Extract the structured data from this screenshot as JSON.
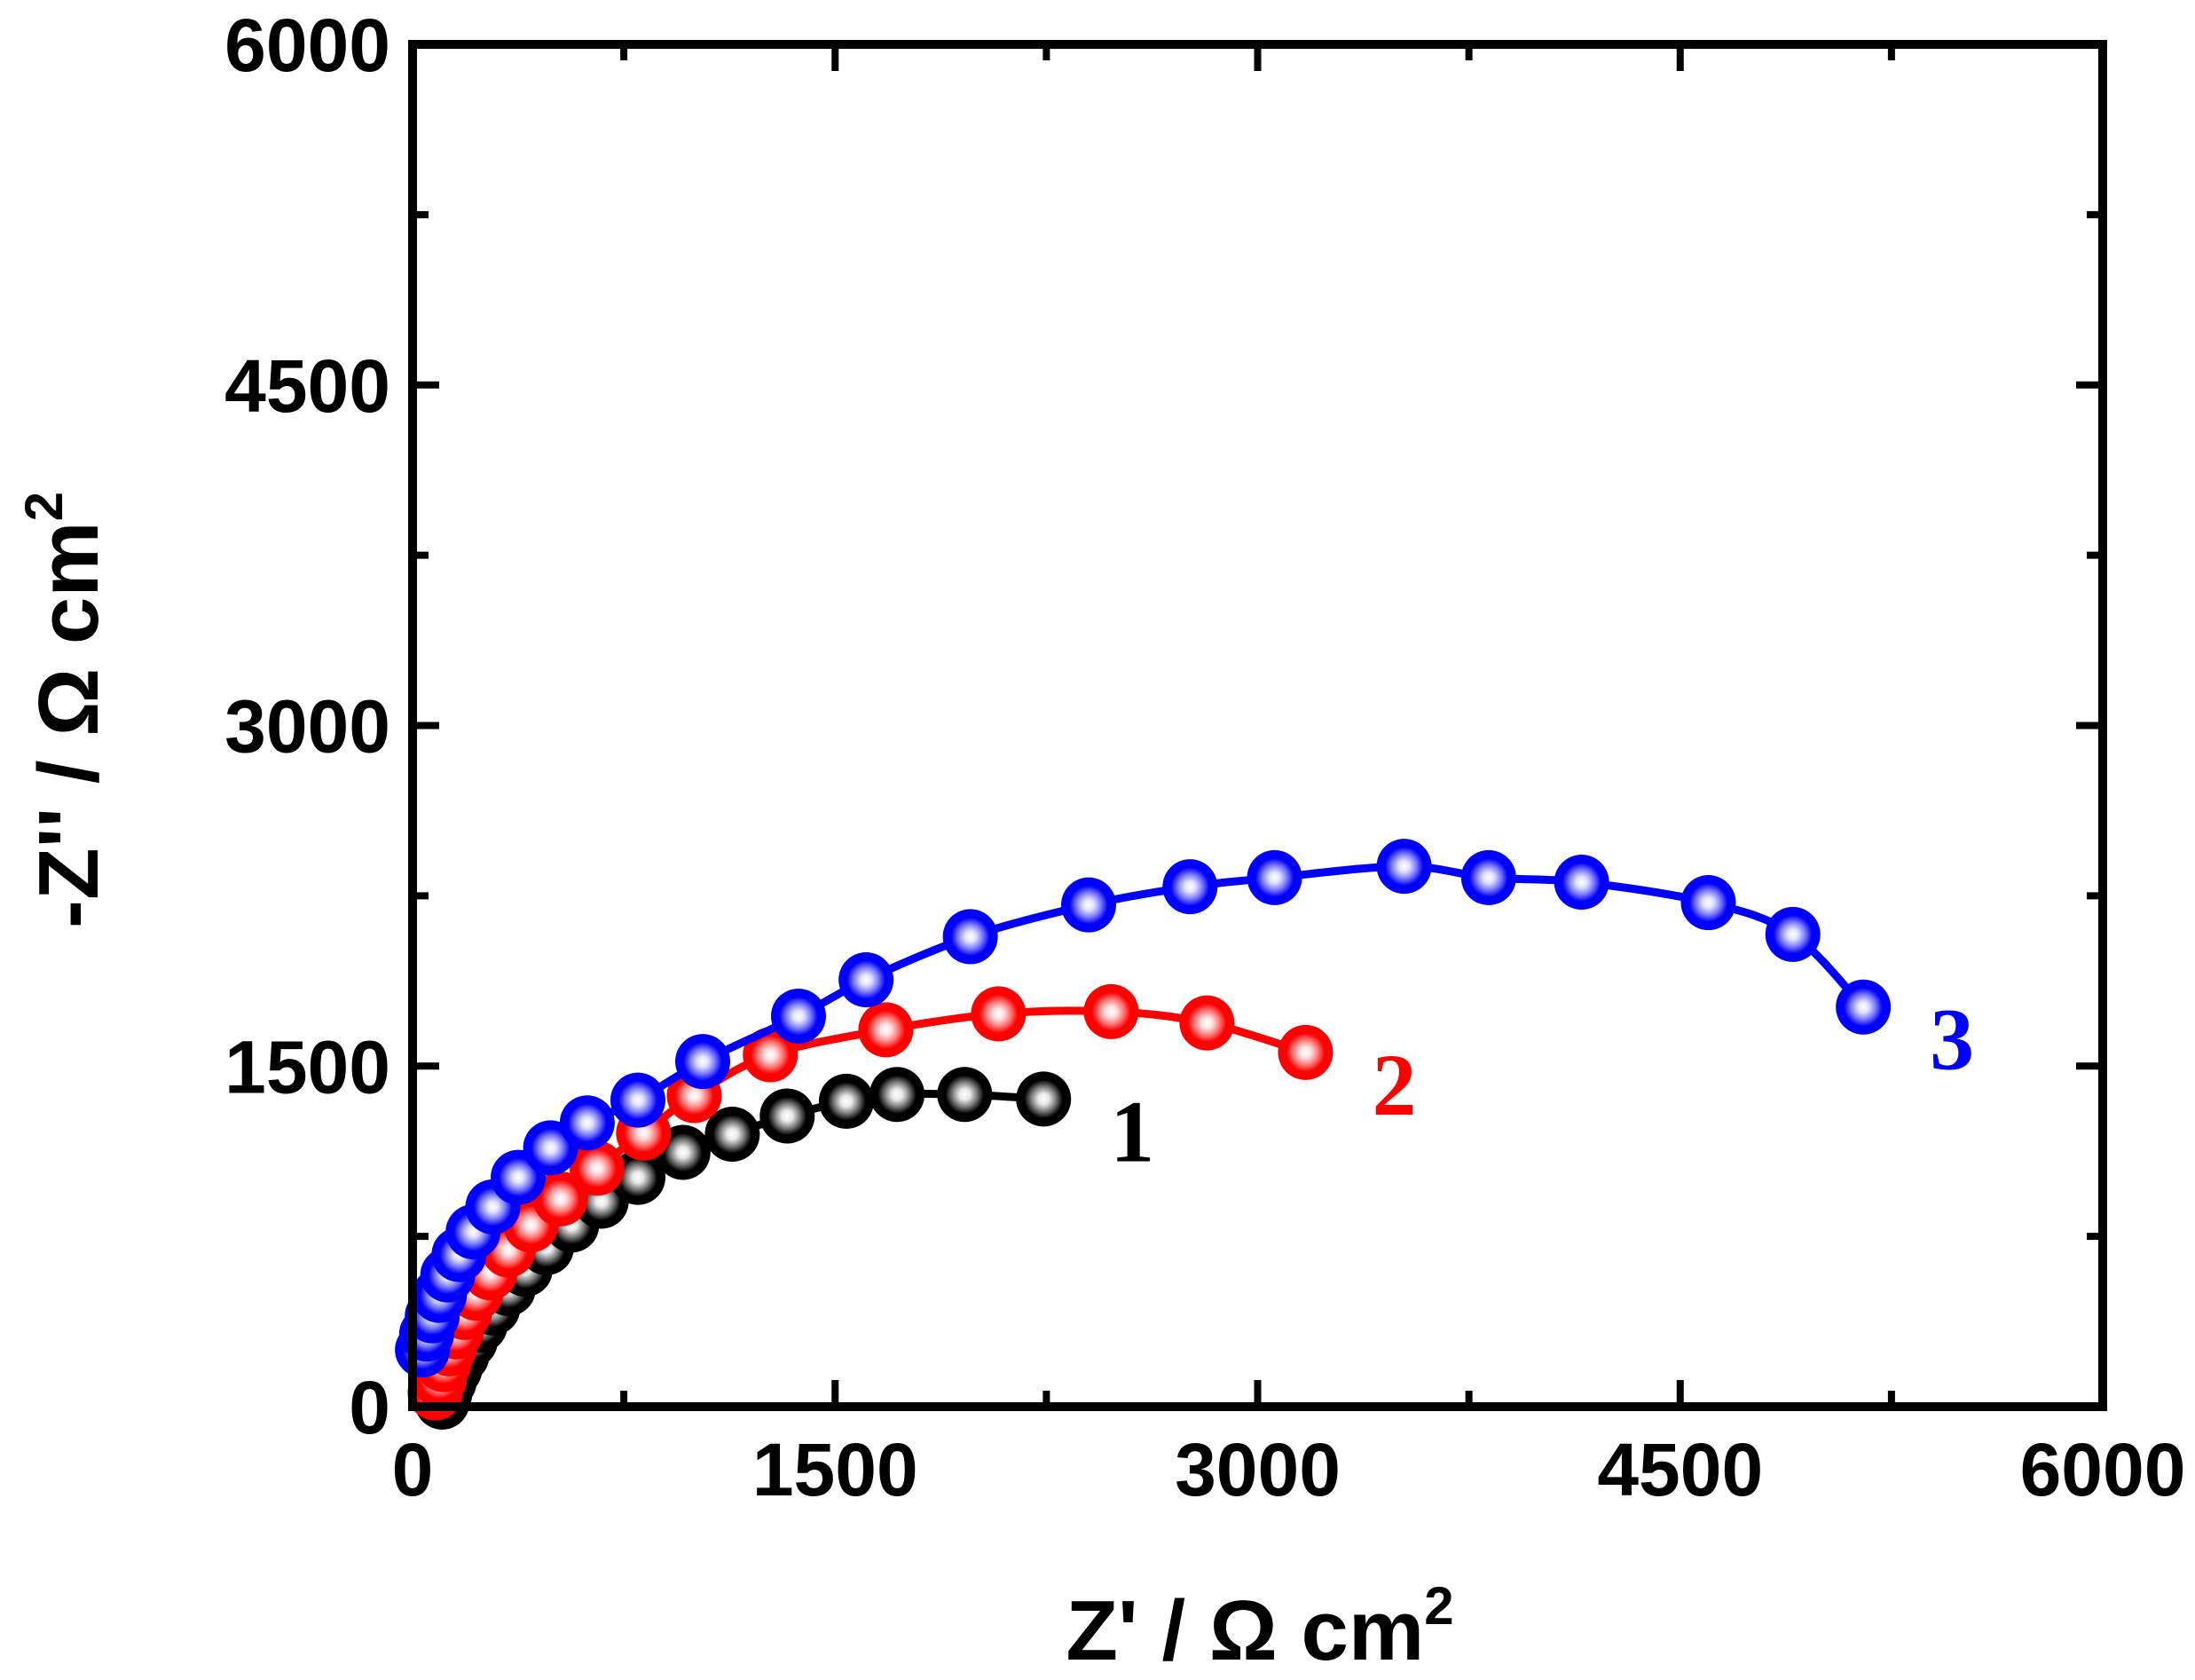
{
  "chart_data": {
    "type": "scatter",
    "title": "",
    "xlabel": "Z' / Ω cm",
    "xlabel_sup": "2",
    "ylabel": "-Z'' / Ω cm",
    "ylabel_sup": "2",
    "xlim": [
      0,
      6000
    ],
    "ylim": [
      0,
      6000
    ],
    "xticks": [
      "0",
      "1500",
      "3000",
      "4500",
      "6000"
    ],
    "yticks": [
      "0",
      "1500",
      "3000",
      "4500",
      "6000"
    ],
    "xtick_values": [
      0,
      1500,
      3000,
      4500,
      6000
    ],
    "ytick_values": [
      0,
      1500,
      3000,
      4500,
      6000
    ],
    "minor_tick_step": 750,
    "grid": false,
    "series": [
      {
        "name": "1",
        "color": "#000000",
        "x": [
          105,
          115,
          130,
          150,
          175,
          205,
          240,
          285,
          340,
          400,
          475,
          565,
          670,
          800,
          960,
          1135,
          1330,
          1540,
          1720,
          1960,
          2240
        ],
        "y": [
          20,
          60,
          110,
          165,
          225,
          290,
          360,
          435,
          520,
          605,
          700,
          800,
          905,
          1010,
          1120,
          1200,
          1280,
          1345,
          1375,
          1375,
          1355
        ]
      },
      {
        "name": "2",
        "color": "#ff0000",
        "x": [
          80,
          95,
          110,
          130,
          155,
          185,
          225,
          275,
          340,
          420,
          525,
          655,
          820,
          1000,
          1270,
          1680,
          2080,
          2480,
          2820,
          3170
        ],
        "y": [
          60,
          120,
          185,
          255,
          330,
          415,
          500,
          590,
          690,
          800,
          915,
          1050,
          1205,
          1370,
          1550,
          1660,
          1730,
          1740,
          1690,
          1560
        ]
      },
      {
        "name": "3",
        "color": "#0000ff",
        "x": [
          35,
          50,
          70,
          95,
          125,
          165,
          215,
          285,
          375,
          490,
          620,
          800,
          1030,
          1370,
          1610,
          1980,
          2400,
          2760,
          3060,
          3520,
          3820,
          4150,
          4600,
          4900,
          5150
        ],
        "y": [
          250,
          320,
          400,
          490,
          580,
          670,
          770,
          880,
          1010,
          1140,
          1250,
          1350,
          1520,
          1720,
          1880,
          2070,
          2210,
          2290,
          2330,
          2380,
          2330,
          2310,
          2220,
          2080,
          1760
        ]
      }
    ]
  }
}
